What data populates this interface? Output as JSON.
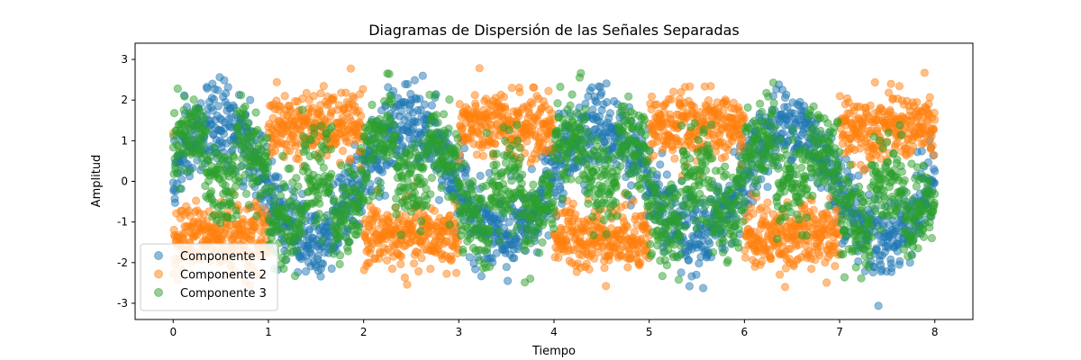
{
  "chart_data": {
    "type": "scatter",
    "title": "Diagramas de Dispersión de las Señales Separadas",
    "xlabel": "Tiempo",
    "ylabel": "Amplitud",
    "xlim": [
      -0.4,
      8.4
    ],
    "ylim": [
      -3.4,
      3.4
    ],
    "xticks": [
      "0",
      "1",
      "2",
      "3",
      "4",
      "5",
      "6",
      "7",
      "8"
    ],
    "yticks": [
      "-3",
      "-2",
      "-1",
      "0",
      "1",
      "2",
      "3"
    ],
    "legend_position": "lower-left",
    "grid": false,
    "marker_alpha": 0.5,
    "x_range": [
      0,
      8
    ],
    "points_per_series": 2000,
    "series": [
      {
        "name": "Componente 1",
        "color": "#1f77b4",
        "model": "sine",
        "frequency": 0.5,
        "amplitude": 1.4,
        "noise_sd": 0.5,
        "phase": 0.0
      },
      {
        "name": "Componente 2",
        "color": "#ff7f0e",
        "model": "square",
        "frequency": 0.5,
        "amplitude": 1.35,
        "noise_sd": 0.4,
        "phase": 0.0
      },
      {
        "name": "Componente 3",
        "color": "#2ca02c",
        "model": "mixed",
        "frequency": 0.5,
        "amplitude": 1.0,
        "noise_sd": 0.55,
        "phase": 0.0
      }
    ]
  }
}
